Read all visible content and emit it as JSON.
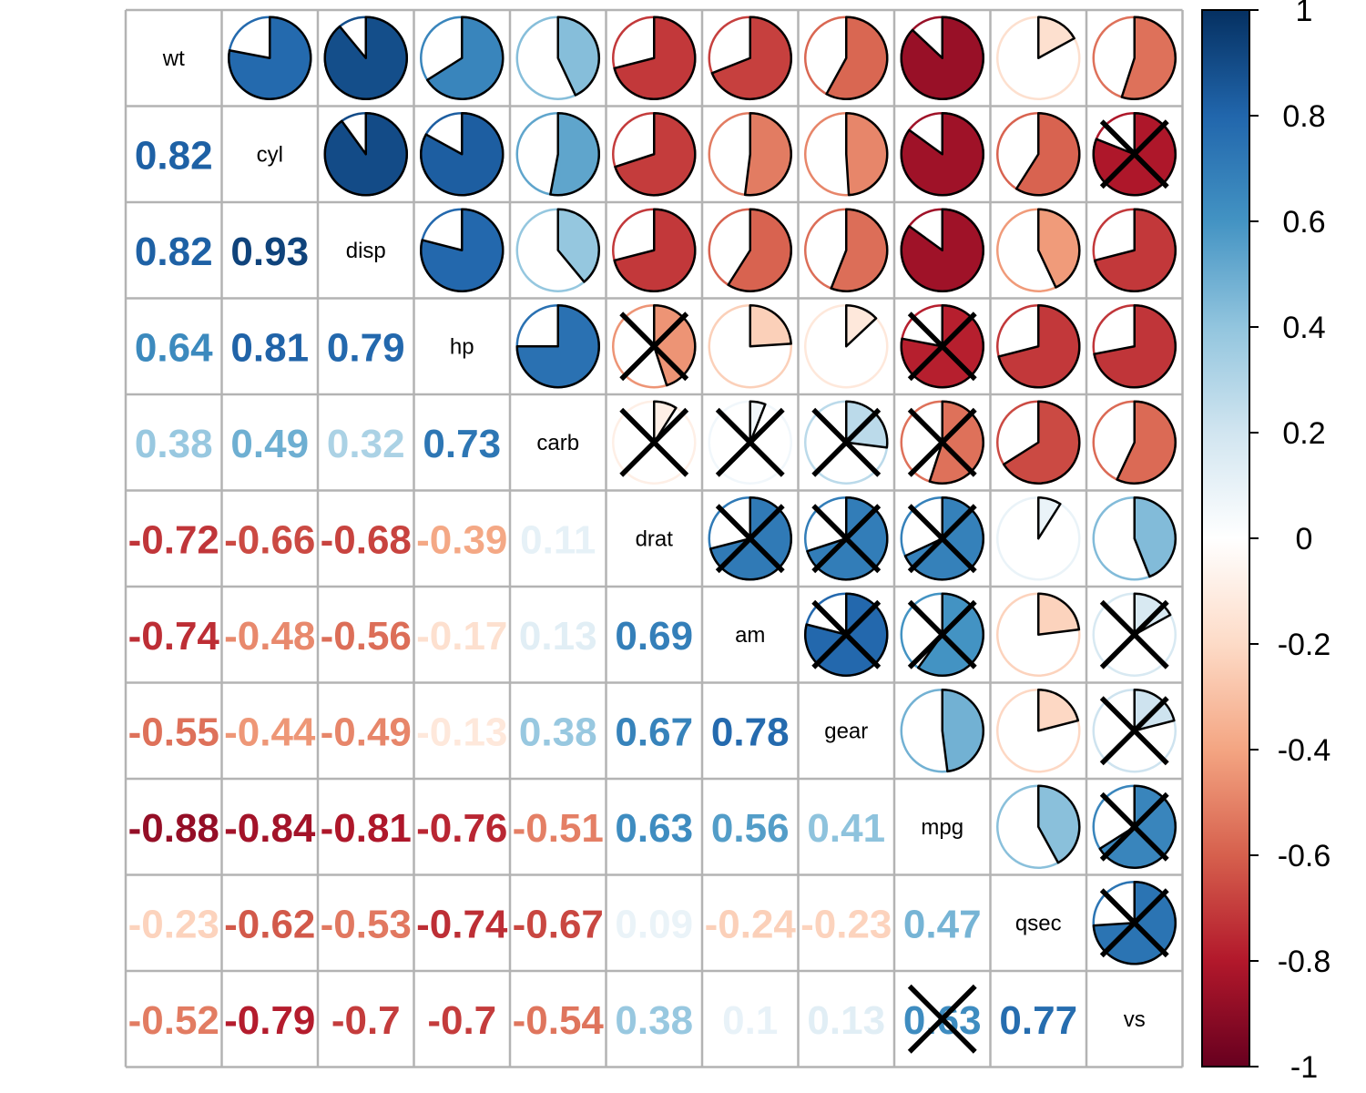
{
  "chart_data": {
    "type": "heatmap",
    "variables": [
      "wt",
      "cyl",
      "disp",
      "hp",
      "carb",
      "drat",
      "am",
      "gear",
      "mpg",
      "qsec",
      "vs"
    ],
    "correlations": [
      [
        1,
        0.78,
        0.89,
        0.66,
        0.43,
        -0.71,
        -0.69,
        -0.58,
        -0.87,
        -0.17,
        -0.55
      ],
      [
        0.82,
        1,
        0.9,
        0.83,
        0.53,
        -0.7,
        -0.52,
        -0.49,
        -0.85,
        -0.59,
        -0.81
      ],
      [
        0.82,
        0.93,
        1,
        0.79,
        0.39,
        -0.71,
        -0.59,
        -0.56,
        -0.85,
        -0.43,
        -0.71
      ],
      [
        0.64,
        0.81,
        0.79,
        1,
        0.75,
        -0.45,
        -0.24,
        -0.13,
        -0.78,
        -0.71,
        -0.72
      ],
      [
        0.38,
        0.49,
        0.32,
        0.73,
        1,
        -0.09,
        0.06,
        0.27,
        -0.55,
        -0.66,
        -0.57
      ],
      [
        -0.72,
        -0.66,
        -0.68,
        -0.39,
        0.11,
        1,
        0.71,
        0.7,
        0.68,
        0.09,
        0.44
      ],
      [
        -0.74,
        -0.48,
        -0.56,
        -0.17,
        0.13,
        0.69,
        1,
        0.79,
        0.6,
        -0.23,
        0.17
      ],
      [
        -0.55,
        -0.44,
        -0.49,
        -0.13,
        0.38,
        0.67,
        0.78,
        1,
        0.48,
        -0.21,
        0.21
      ],
      [
        -0.88,
        -0.84,
        -0.81,
        -0.76,
        -0.51,
        0.63,
        0.56,
        0.41,
        1,
        0.42,
        0.66
      ],
      [
        -0.23,
        -0.62,
        -0.53,
        -0.74,
        -0.67,
        0.09,
        -0.24,
        -0.23,
        0.47,
        1,
        0.74
      ],
      [
        -0.52,
        -0.79,
        -0.7,
        -0.7,
        -0.54,
        0.38,
        0.1,
        0.13,
        0.63,
        0.77,
        1
      ]
    ],
    "lower_labels": [
      [
        null,
        null,
        null,
        null,
        null,
        null,
        null,
        null,
        null,
        null,
        null
      ],
      [
        "0.82",
        null,
        null,
        null,
        null,
        null,
        null,
        null,
        null,
        null,
        null
      ],
      [
        "0.82",
        "0.93",
        null,
        null,
        null,
        null,
        null,
        null,
        null,
        null,
        null
      ],
      [
        "0.64",
        "0.81",
        "0.79",
        null,
        null,
        null,
        null,
        null,
        null,
        null,
        null
      ],
      [
        "0.38",
        "0.49",
        "0.32",
        "0.73",
        null,
        null,
        null,
        null,
        null,
        null,
        null
      ],
      [
        "-0.72",
        "-0.66",
        "-0.68",
        "-0.39",
        "0.11",
        null,
        null,
        null,
        null,
        null,
        null
      ],
      [
        "-0.74",
        "-0.48",
        "-0.56",
        "-0.17",
        "0.13",
        "0.69",
        null,
        null,
        null,
        null,
        null
      ],
      [
        "-0.55",
        "-0.44",
        "-0.49",
        "-0.13",
        "0.38",
        "0.67",
        "0.78",
        null,
        null,
        null,
        null
      ],
      [
        "-0.88",
        "-0.84",
        "-0.81",
        "-0.76",
        "-0.51",
        "0.63",
        "0.56",
        "0.41",
        null,
        null,
        null
      ],
      [
        "-0.23",
        "-0.62",
        "-0.53",
        "-0.74",
        "-0.67",
        "0.09",
        "-0.24",
        "-0.23",
        "0.47",
        null,
        null
      ],
      [
        "-0.52",
        "-0.79",
        "-0.7",
        "-0.7",
        "-0.54",
        "0.38",
        "0.1",
        "0.13",
        "0.63",
        "0.77",
        null
      ]
    ],
    "crossed_lower": [
      [
        3,
        5
      ],
      [
        4,
        5
      ],
      [
        4,
        6
      ],
      [
        6,
        7
      ],
      [
        3,
        8
      ],
      [
        5,
        8
      ],
      [
        6,
        8
      ],
      [
        10,
        8
      ],
      [
        9,
        9
      ],
      [
        9,
        10
      ],
      [
        9,
        11
      ]
    ],
    "crossed_upper": [
      [
        1,
        10
      ],
      [
        4,
        7
      ],
      [
        4,
        8
      ],
      [
        5,
        6
      ],
      [
        5,
        7
      ],
      [
        5,
        8
      ],
      [
        6,
        10
      ],
      [
        7,
        10
      ],
      [
        7,
        11
      ],
      [
        8,
        10
      ],
      [
        8,
        11
      ]
    ],
    "colorbar": {
      "ticks": [
        "1",
        "0.8",
        "0.6",
        "0.4",
        "0.2",
        "0",
        "-0.2",
        "-0.4",
        "-0.6",
        "-0.8",
        "-1"
      ],
      "range": [
        -1,
        1
      ]
    },
    "palette": [
      "#67001F",
      "#B2182B",
      "#D6604D",
      "#F4A582",
      "#FDDBC7",
      "#FFFFFF",
      "#D1E5F0",
      "#92C5DE",
      "#4393C3",
      "#2166AC",
      "#053061"
    ],
    "grid": true,
    "legend_placement": "right"
  }
}
